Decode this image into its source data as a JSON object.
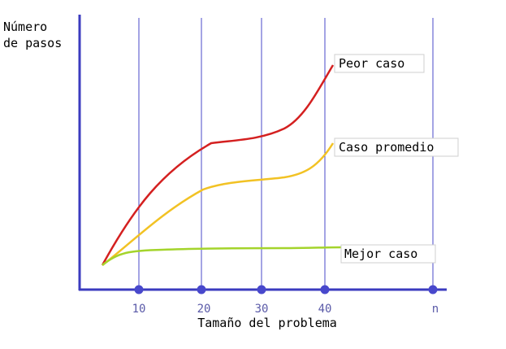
{
  "chart_data": {
    "type": "line",
    "ylabel_lines": [
      "Número",
      "de pasos"
    ],
    "xlabel": "Tamaño del problema",
    "x_ticks": [
      {
        "label": "10",
        "value": 10
      },
      {
        "label": "20",
        "value": 20
      },
      {
        "label": "30",
        "value": 30
      },
      {
        "label": "40",
        "value": 40
      },
      {
        "label": "n",
        "value": "n"
      }
    ],
    "series": [
      {
        "name": "Peor caso",
        "color": "#d42020"
      },
      {
        "name": "Caso promedio",
        "color": "#f2c224"
      },
      {
        "name": "Mejor caso",
        "color": "#a4d42c"
      }
    ],
    "colors": {
      "axis": "#3b3bbf",
      "gridline": "#4a4ac8",
      "tick_marker": "#4848cc",
      "tick_label": "#5a5aa8",
      "text": "#000000"
    },
    "grid": true
  }
}
